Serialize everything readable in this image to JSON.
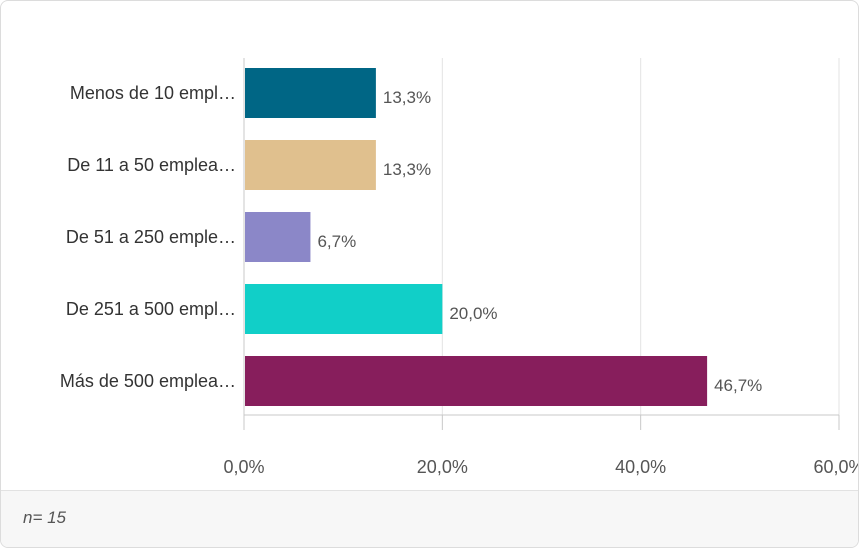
{
  "chart_data": {
    "type": "bar",
    "orientation": "horizontal",
    "categories": [
      "Menos de 10 empl…",
      "De 11 a 50 emplea…",
      "De 51 a 250 emple…",
      "De 251 a 500 empl…",
      "Más de 500 emplea…"
    ],
    "values": [
      13.3,
      13.3,
      6.7,
      20.0,
      46.7
    ],
    "value_labels": [
      "13,3%",
      "13,3%",
      "6,7%",
      "20,0%",
      "46,7%"
    ],
    "colors": [
      "#006685",
      "#e0c08e",
      "#8b87c8",
      "#11cfc8",
      "#871e5c"
    ],
    "xlim": [
      0,
      60
    ],
    "x_ticks": [
      0,
      20,
      40,
      60
    ],
    "x_tick_labels": [
      "0,0%",
      "20,0%",
      "40,0%",
      "60,0%"
    ],
    "grid": true
  },
  "footer": {
    "sample_size": "n= 15"
  }
}
